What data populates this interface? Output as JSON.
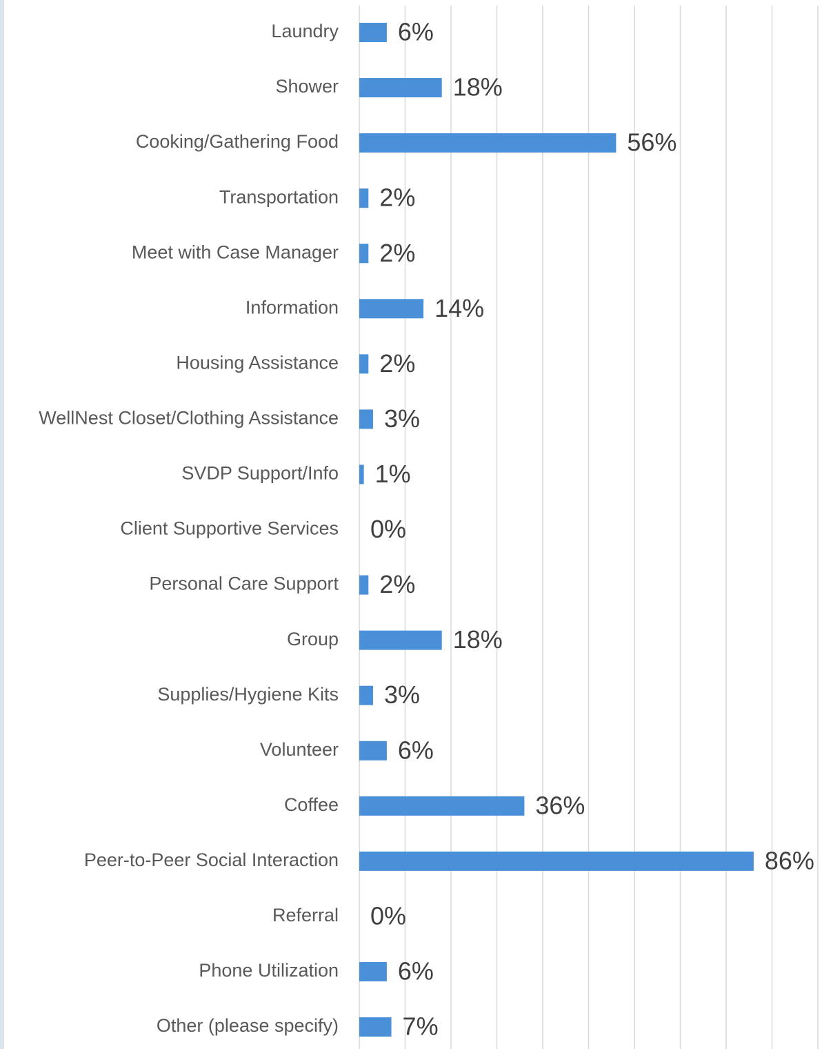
{
  "chart_data": {
    "type": "barh",
    "categories": [
      "Laundry",
      "Shower",
      "Cooking/Gathering Food",
      "Transportation",
      "Meet with Case Manager",
      "Information",
      "Housing Assistance",
      "WellNest Closet/Clothing Assistance",
      "SVDP Support/Info",
      "Client Supportive Services",
      "Personal Care Support",
      "Group",
      "Supplies/Hygiene Kits",
      "Volunteer",
      "Coffee",
      "Peer-to-Peer Social Interaction",
      "Referral",
      "Phone Utilization",
      "Other (please specify)"
    ],
    "values": [
      6,
      18,
      56,
      2,
      2,
      14,
      2,
      3,
      1,
      0,
      2,
      18,
      3,
      6,
      36,
      86,
      0,
      6,
      7
    ],
    "value_labels": [
      "6%",
      "18%",
      "56%",
      "2%",
      "2%",
      "14%",
      "2%",
      "3%",
      "1%",
      "0%",
      "2%",
      "18%",
      "3%",
      "6%",
      "36%",
      "86%",
      "0%",
      "6%",
      "7%"
    ],
    "color": "#4a90d9",
    "xlim": [
      0,
      100
    ],
    "xticks": [
      0,
      10,
      20,
      30,
      40,
      50,
      60,
      70,
      80,
      90,
      100
    ],
    "grid": true
  }
}
